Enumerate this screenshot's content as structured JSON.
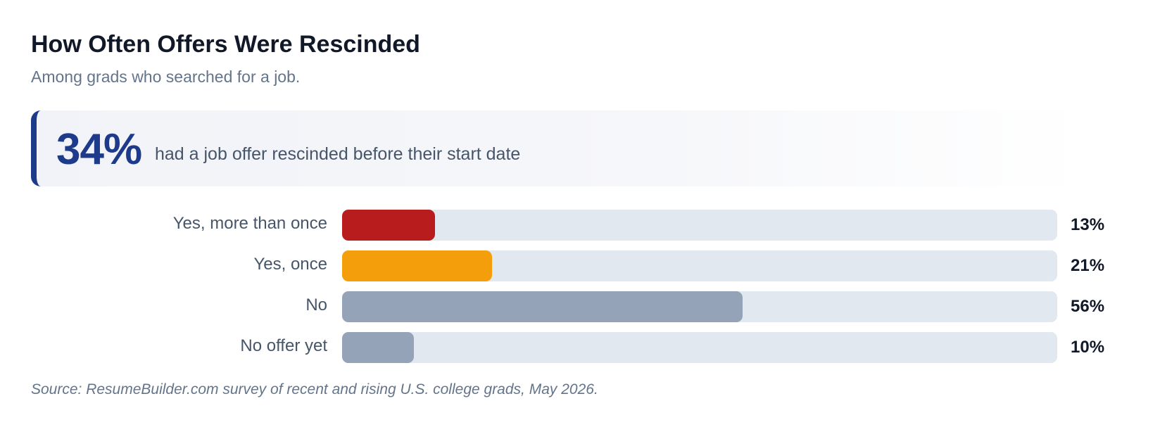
{
  "header": {
    "title": "How Often Offers Were Rescinded",
    "subtitle": "Among grads who searched for a job."
  },
  "callout": {
    "value": "34%",
    "text": "had a job offer rescinded before their start date",
    "accent_color": "#1e3a8a"
  },
  "chart_data": {
    "type": "bar",
    "orientation": "horizontal",
    "title": "How Often Offers Were Rescinded",
    "subtitle": "Among grads who searched for a job.",
    "categories": [
      "Yes, more than once",
      "Yes, once",
      "No",
      "No offer yet"
    ],
    "values": [
      13,
      21,
      56,
      10
    ],
    "value_labels": [
      "13%",
      "21%",
      "56%",
      "10%"
    ],
    "colors": [
      "#b91c1c",
      "#f59e0b",
      "#94a3b8",
      "#94a3b8"
    ],
    "track_color": "#e2e8f0",
    "xlim": [
      0,
      100
    ],
    "grid": false,
    "legend": "none"
  },
  "footer": {
    "source": "Source: ResumeBuilder.com survey of recent and rising U.S. college grads, May 2026."
  }
}
